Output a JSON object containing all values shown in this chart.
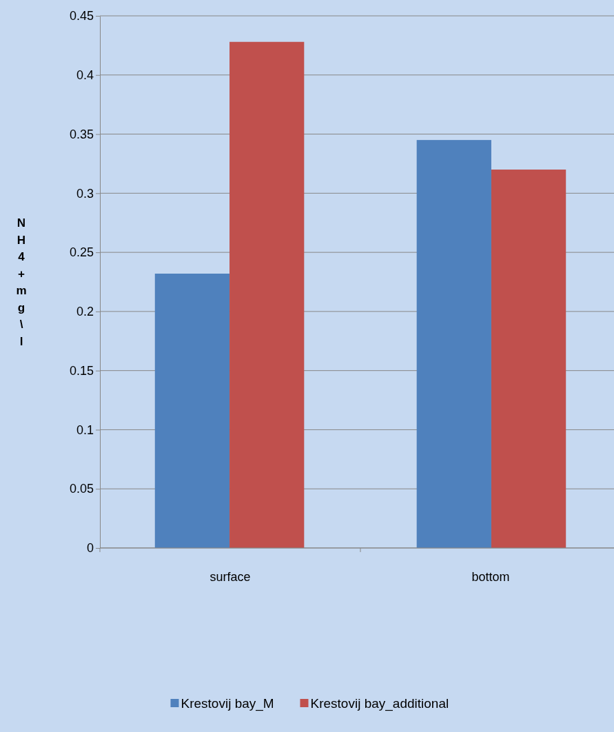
{
  "chart_data": {
    "type": "bar",
    "ylabel": "NH4+ mg\\l",
    "categories": [
      "surface",
      "bottom"
    ],
    "series": [
      {
        "name": "Krestovij bay_M",
        "color": "#4f81bd",
        "values": [
          0.232,
          0.345
        ]
      },
      {
        "name": "Krestovij bay_additional",
        "color": "#c0504d",
        "values": [
          0.428,
          0.32
        ]
      }
    ],
    "ylim": [
      0,
      0.45
    ],
    "yticks": [
      0,
      0.05,
      0.1,
      0.15,
      0.2,
      0.25,
      0.3,
      0.35,
      0.4,
      0.45
    ],
    "grid": "y",
    "legend": "bottom"
  }
}
